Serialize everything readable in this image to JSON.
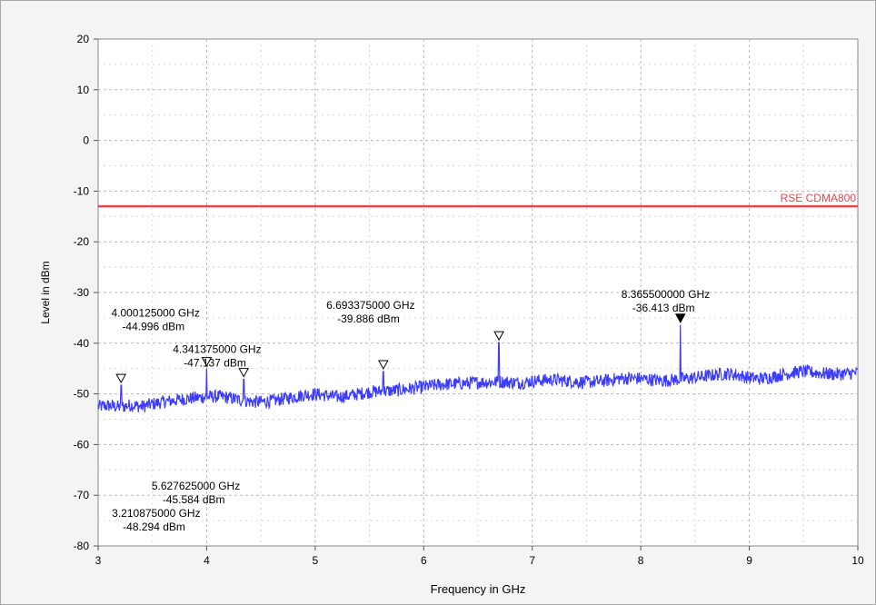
{
  "chart_data": {
    "type": "line",
    "xlabel": "Frequency in GHz",
    "ylabel": "Level in dBm",
    "xlim": [
      3,
      10
    ],
    "ylim": [
      -80,
      20
    ],
    "x_ticks": [
      "3",
      "4",
      "5",
      "6",
      "7",
      "8",
      "9",
      "10"
    ],
    "y_ticks": [
      "20",
      "10",
      "0",
      "-10",
      "-20",
      "-30",
      "-40",
      "-50",
      "-60",
      "-70",
      "-80"
    ],
    "grid": true,
    "limit_line": {
      "label": "RSE CDMA800",
      "value": -13,
      "color": "#e8444c"
    },
    "series": [
      {
        "color": "#3b3bff",
        "x": [
          3.0,
          3.1,
          3.2,
          3.3,
          3.4,
          3.5,
          3.6,
          3.7,
          3.8,
          3.9,
          4.0,
          4.1,
          4.2,
          4.3,
          4.4,
          4.5,
          4.6,
          4.7,
          4.8,
          4.9,
          5.0,
          5.1,
          5.2,
          5.3,
          5.4,
          5.5,
          5.6,
          5.7,
          5.8,
          5.9,
          6.0,
          6.1,
          6.2,
          6.3,
          6.4,
          6.5,
          6.6,
          6.7,
          6.8,
          6.9,
          7.0,
          7.1,
          7.2,
          7.3,
          7.4,
          7.5,
          7.6,
          7.7,
          7.8,
          7.9,
          8.0,
          8.1,
          8.2,
          8.3,
          8.4,
          8.5,
          8.6,
          8.7,
          8.8,
          8.9,
          9.0,
          9.1,
          9.2,
          9.3,
          9.4,
          9.5,
          9.6,
          9.7,
          9.8,
          9.9,
          10.0
        ],
        "y": [
          -52.5,
          -52.3,
          -52.6,
          -52.2,
          -52.5,
          -52.0,
          -51.6,
          -51.3,
          -51.0,
          -50.8,
          -50.6,
          -50.5,
          -50.7,
          -51.2,
          -51.5,
          -51.6,
          -51.4,
          -51.0,
          -50.6,
          -50.2,
          -50.0,
          -50.3,
          -50.6,
          -50.4,
          -50.0,
          -49.6,
          -49.5,
          -49.4,
          -49.2,
          -48.9,
          -48.6,
          -48.3,
          -48.1,
          -48.0,
          -47.9,
          -47.7,
          -47.7,
          -47.6,
          -47.7,
          -47.8,
          -47.5,
          -47.3,
          -47.2,
          -47.4,
          -47.6,
          -47.7,
          -47.6,
          -47.3,
          -47.0,
          -46.9,
          -47.0,
          -47.2,
          -47.4,
          -47.2,
          -47.0,
          -46.8,
          -46.5,
          -46.2,
          -46.0,
          -46.3,
          -46.8,
          -47.0,
          -46.7,
          -46.2,
          -45.8,
          -45.6,
          -45.8,
          -46.0,
          -46.1,
          -46.0,
          -45.8
        ]
      }
    ],
    "markers": [
      {
        "x": 3.210875,
        "y": -48.294,
        "freq": "3.210875000 GHz",
        "level": "-48.294 dBm",
        "filled": false
      },
      {
        "x": 4.000125,
        "y": -44.996,
        "freq": "4.000125000 GHz",
        "level": "-44.996 dBm",
        "filled": false
      },
      {
        "x": 4.341375,
        "y": -47.137,
        "freq": "4.341375000 GHz",
        "level": "-47.137 dBm",
        "filled": false
      },
      {
        "x": 5.627625,
        "y": -45.584,
        "freq": "5.627625000 GHz",
        "level": "-45.584 dBm",
        "filled": false
      },
      {
        "x": 6.693375,
        "y": -39.886,
        "freq": "6.693375000 GHz",
        "level": "-39.886 dBm",
        "filled": false
      },
      {
        "x": 8.3655,
        "y": -36.413,
        "freq": "8.365500000 GHz",
        "level": "-36.413 dBm",
        "filled": true
      }
    ]
  }
}
